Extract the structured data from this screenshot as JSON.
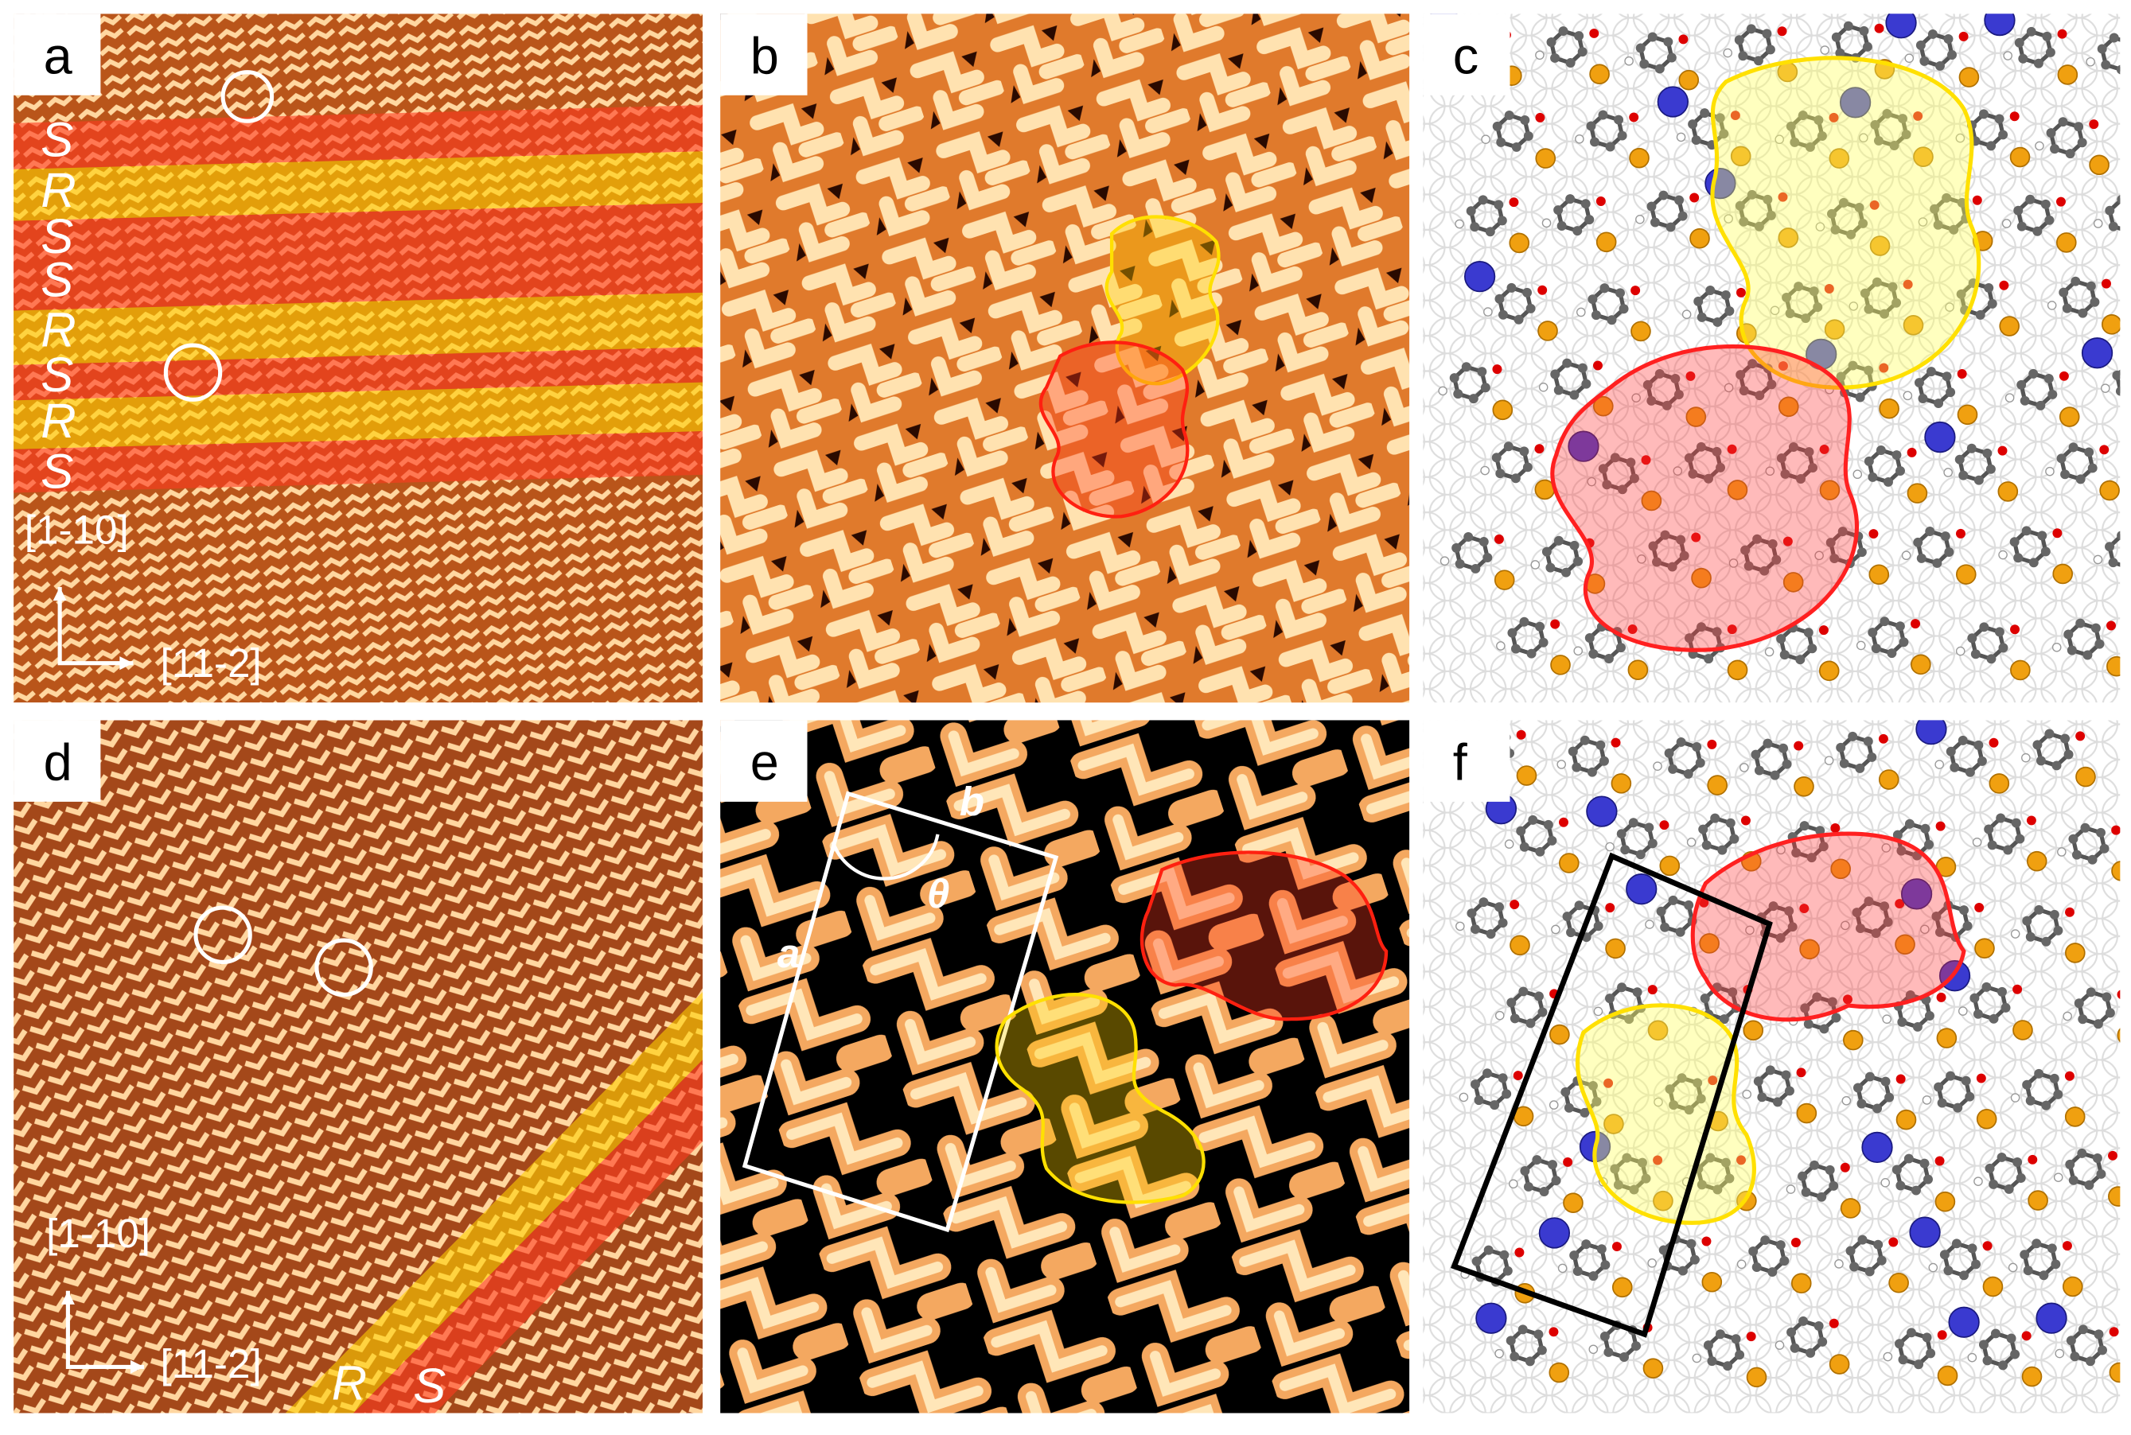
{
  "panels": [
    {
      "label": "a",
      "strand_labels": [
        "S",
        "R",
        "S",
        "S",
        "R",
        "S",
        "R",
        "S"
      ],
      "direction_vertical": "[1-10]",
      "direction_horizontal": "[11-2]"
    },
    {
      "label": "b"
    },
    {
      "label": "c"
    },
    {
      "label": "d",
      "direction_vertical": "[1-10]",
      "direction_horizontal": "[11-2]",
      "domain_labels": [
        "R",
        "S"
      ]
    },
    {
      "label": "e",
      "cell_labels": [
        "a",
        "b",
        "θ"
      ]
    },
    {
      "label": "f"
    }
  ]
}
